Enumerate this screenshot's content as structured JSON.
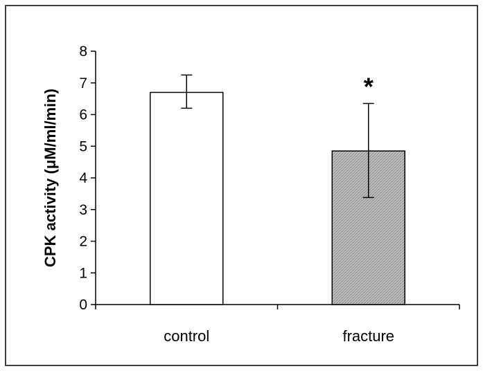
{
  "chart_data": {
    "type": "bar",
    "title": "",
    "xlabel": "",
    "ylabel": "CPK activity (μM/ml/min)",
    "ylim": [
      0,
      8
    ],
    "yticks": [
      "0",
      "1",
      "2",
      "3",
      "4",
      "5",
      "6",
      "7",
      "8"
    ],
    "categories": [
      "control",
      "fracture"
    ],
    "values": [
      6.7,
      4.85
    ],
    "error_high": [
      7.25,
      6.35
    ],
    "error_low": [
      6.2,
      3.38
    ],
    "significance": [
      "",
      "*"
    ],
    "bar_fills": [
      "#ffffff",
      "#b8b8b8"
    ],
    "grid": false,
    "legend": "none"
  }
}
